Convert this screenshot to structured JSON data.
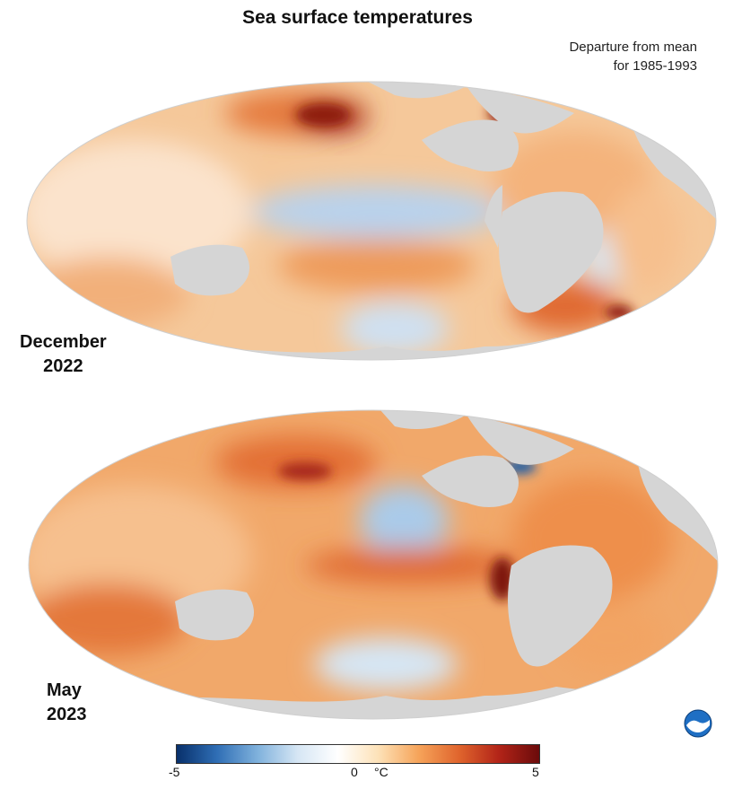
{
  "title": "Sea surface temperatures",
  "subtitle": {
    "line1": "Departure from mean",
    "line2": "for 1985-1993"
  },
  "maps": [
    {
      "label_line1": "December",
      "label_line2": "2022"
    },
    {
      "label_line1": "May",
      "label_line2": "2023"
    }
  ],
  "colorbar": {
    "min": "-5",
    "mid": "0",
    "unit": "°C",
    "max": "5",
    "colors": [
      "#08306b",
      "#2f6eb5",
      "#7fb1dc",
      "#d6e6f4",
      "#ffffff",
      "#fde2b8",
      "#f6a45a",
      "#e0652d",
      "#b22418",
      "#6b0b0b"
    ]
  },
  "colors": {
    "land": "#d5d5d5",
    "warm": "#e8793d",
    "cool": "#a9c9e8",
    "hot": "#9b1d12"
  },
  "logo": "noaa-logo-icon"
}
